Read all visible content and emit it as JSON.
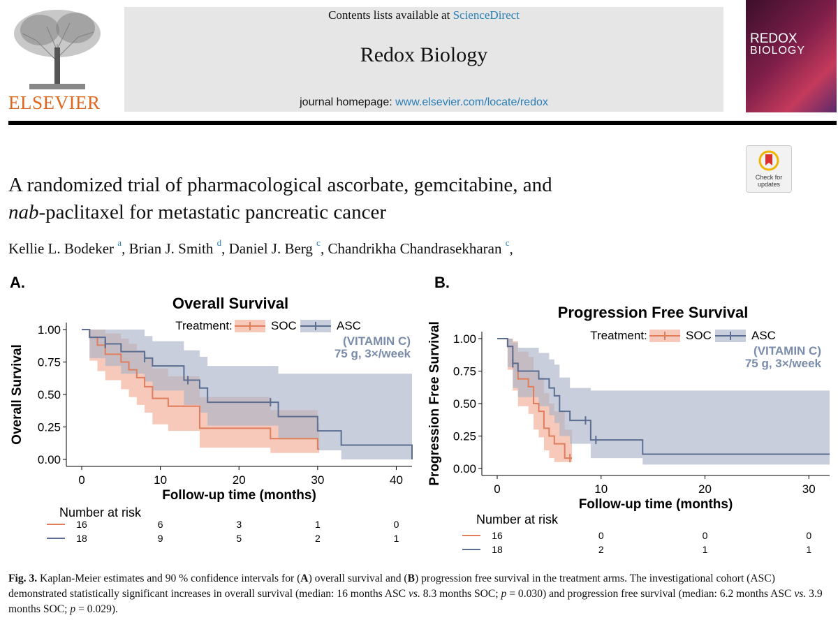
{
  "header": {
    "contents_prefix": "Contents lists available at ",
    "contents_link": "ScienceDirect",
    "journal_name": "Redox Biology",
    "homepage_prefix": "journal homepage: ",
    "homepage_link": "www.elsevier.com/locate/redox",
    "publisher": "ELSEVIER",
    "cover_title_1": "REDOX",
    "cover_title_2": "BIOLOGY",
    "check_updates": "Check for updates"
  },
  "article": {
    "title_line1": "A randomized trial of pharmacological ascorbate, gemcitabine, and",
    "title_italic": "nab",
    "title_line2_rest": "-paclitaxel for metastatic pancreatic cancer",
    "authors": [
      {
        "name": "Kellie L. Bodeker",
        "aff": "a",
        "sep": ", "
      },
      {
        "name": "Brian J. Smith",
        "aff": "d",
        "sep": ", "
      },
      {
        "name": "Daniel J. Berg",
        "aff": "c",
        "sep": ", "
      },
      {
        "name": "Chandrikha Chandrasekharan",
        "aff": "c",
        "sep": ","
      }
    ]
  },
  "figure": {
    "caption_label": "Fig. 3.",
    "caption_text_1": " Kaplan-Meier estimates and 90 % confidence intervals for (",
    "caption_A": "A",
    "caption_text_2": ") overall survival and (",
    "caption_B": "B",
    "caption_text_3": ") progression free survival in the treatment arms. The investigational cohort (ASC) demonstrated statistically significant increases in overall survival (median: 16 months ASC ",
    "caption_vs1": "vs.",
    "caption_text_4": " 8.3 months SOC; ",
    "caption_p1": "p",
    "caption_text_5": " = 0.030) and progression free survival (median: 6.2 months ASC ",
    "caption_vs2": "vs.",
    "caption_text_6": " 3.9 months SOC; ",
    "caption_p2": "p",
    "caption_text_7": " = 0.029).",
    "colors": {
      "soc": "#e07e5c",
      "soc_ci": "#f3b7a4",
      "asc": "#5b6e92",
      "asc_ci": "#aab4c8"
    }
  },
  "chart_data": [
    {
      "type": "line",
      "panel_label": "A.",
      "title": "Overall Survival",
      "xlabel": "Follow-up time (months)",
      "ylabel": "Overall Survival",
      "xlim": [
        0,
        42
      ],
      "ylim": [
        0,
        1
      ],
      "xticks": [
        0,
        10,
        20,
        30,
        40
      ],
      "yticks": [
        "0.00",
        "0.25",
        "0.50",
        "0.75",
        "1.00"
      ],
      "legend_title": "Treatment:",
      "legend": [
        "SOC",
        "ASC"
      ],
      "annotation": [
        "(VITAMIN C)",
        "75 g, 3×/week"
      ],
      "series": [
        {
          "name": "SOC",
          "x": [
            0,
            1,
            2,
            3,
            5,
            6,
            7,
            8,
            9,
            11,
            15,
            21,
            24,
            30
          ],
          "y": [
            1.0,
            0.94,
            0.88,
            0.81,
            0.75,
            0.69,
            0.63,
            0.56,
            0.47,
            0.41,
            0.24,
            0.24,
            0.16,
            0.08
          ],
          "x_end": 30.2,
          "ci_upper": [
            1.0,
            1.0,
            1.0,
            0.97,
            0.93,
            0.89,
            0.84,
            0.78,
            0.7,
            0.64,
            0.48,
            0.48,
            0.38,
            0.28
          ],
          "ci_lower": [
            1.0,
            0.76,
            0.68,
            0.61,
            0.54,
            0.48,
            0.42,
            0.36,
            0.27,
            0.22,
            0.09,
            0.09,
            0.05,
            0.05
          ],
          "censor": [
            {
              "x": 3,
              "y": 0.88
            }
          ]
        },
        {
          "name": "ASC",
          "x": [
            0,
            1,
            3,
            5,
            8,
            9,
            13,
            15,
            16,
            25,
            30,
            33,
            42
          ],
          "y": [
            1.0,
            0.94,
            0.89,
            0.83,
            0.78,
            0.72,
            0.61,
            0.55,
            0.44,
            0.33,
            0.22,
            0.11,
            0.0
          ],
          "x_end": 42,
          "ci_upper": [
            1.0,
            1.0,
            1.0,
            1.0,
            0.95,
            0.91,
            0.84,
            0.79,
            0.72,
            0.66,
            0.66,
            0.66,
            0.66
          ],
          "ci_lower": [
            1.0,
            0.78,
            0.72,
            0.66,
            0.6,
            0.53,
            0.42,
            0.36,
            0.26,
            0.16,
            0.07,
            0.0,
            0.0
          ],
          "censor": [
            {
              "x": 3,
              "y": 0.89
            },
            {
              "x": 8,
              "y": 0.78
            },
            {
              "x": 13.5,
              "y": 0.61
            },
            {
              "x": 24,
              "y": 0.44
            }
          ]
        }
      ],
      "risk_table": {
        "title": "Number at risk",
        "times": [
          0,
          10,
          20,
          30,
          40
        ],
        "rows": [
          {
            "name": "SOC",
            "values": [
              "16",
              "6",
              "3",
              "1",
              "0"
            ]
          },
          {
            "name": "ASC",
            "values": [
              "18",
              "9",
              "5",
              "2",
              "1"
            ]
          }
        ]
      }
    },
    {
      "type": "line",
      "panel_label": "B.",
      "title": "Progression Free Survival",
      "xlabel": "Follow-up time (months)",
      "ylabel": "Progression Free Survival",
      "xlim": [
        0,
        32
      ],
      "ylim": [
        0,
        1
      ],
      "xticks": [
        0,
        10,
        20,
        30
      ],
      "yticks": [
        "0.00",
        "0.25",
        "0.50",
        "0.75",
        "1.00"
      ],
      "legend_title": "Treatment:",
      "legend": [
        "SOC",
        "ASC"
      ],
      "annotation": [
        "(VITAMIN C)",
        "75 g, 3×/week"
      ],
      "series": [
        {
          "name": "SOC",
          "x": [
            0,
            1,
            1.5,
            2,
            3,
            3.5,
            4,
            4.5,
            5,
            5.5,
            6.5,
            7
          ],
          "y": [
            1.0,
            0.94,
            0.81,
            0.69,
            0.63,
            0.5,
            0.44,
            0.31,
            0.25,
            0.19,
            0.08,
            0.08
          ],
          "x_end": 7.2,
          "ci_upper": [
            1.0,
            1.0,
            0.98,
            0.9,
            0.86,
            0.75,
            0.7,
            0.58,
            0.5,
            0.44,
            0.3,
            0.3
          ],
          "ci_lower": [
            1.0,
            0.76,
            0.6,
            0.48,
            0.42,
            0.3,
            0.24,
            0.14,
            0.08,
            0.05,
            0.05,
            0.05
          ],
          "censor": [
            {
              "x": 1.5,
              "y": 0.81
            },
            {
              "x": 7,
              "y": 0.08
            }
          ]
        },
        {
          "name": "ASC",
          "x": [
            0,
            1,
            1.5,
            2,
            4,
            5,
            5.5,
            6,
            7,
            9,
            14
          ],
          "y": [
            1.0,
            0.94,
            0.81,
            0.75,
            0.69,
            0.62,
            0.56,
            0.44,
            0.37,
            0.22,
            0.11
          ],
          "x_end": 32,
          "ci_upper": [
            1.0,
            1.0,
            0.97,
            0.93,
            0.89,
            0.84,
            0.8,
            0.7,
            0.62,
            0.6,
            0.6
          ],
          "ci_lower": [
            1.0,
            0.78,
            0.62,
            0.55,
            0.48,
            0.41,
            0.35,
            0.25,
            0.19,
            0.08,
            0.03
          ],
          "censor": [
            {
              "x": 1.5,
              "y": 0.81
            },
            {
              "x": 8.5,
              "y": 0.37
            },
            {
              "x": 9.5,
              "y": 0.22
            }
          ]
        }
      ],
      "risk_table": {
        "title": "Number at risk",
        "times": [
          0,
          10,
          20,
          30
        ],
        "rows": [
          {
            "name": "SOC",
            "values": [
              "16",
              "0",
              "0",
              "0"
            ]
          },
          {
            "name": "ASC",
            "values": [
              "18",
              "2",
              "1",
              "1"
            ]
          }
        ]
      }
    }
  ]
}
